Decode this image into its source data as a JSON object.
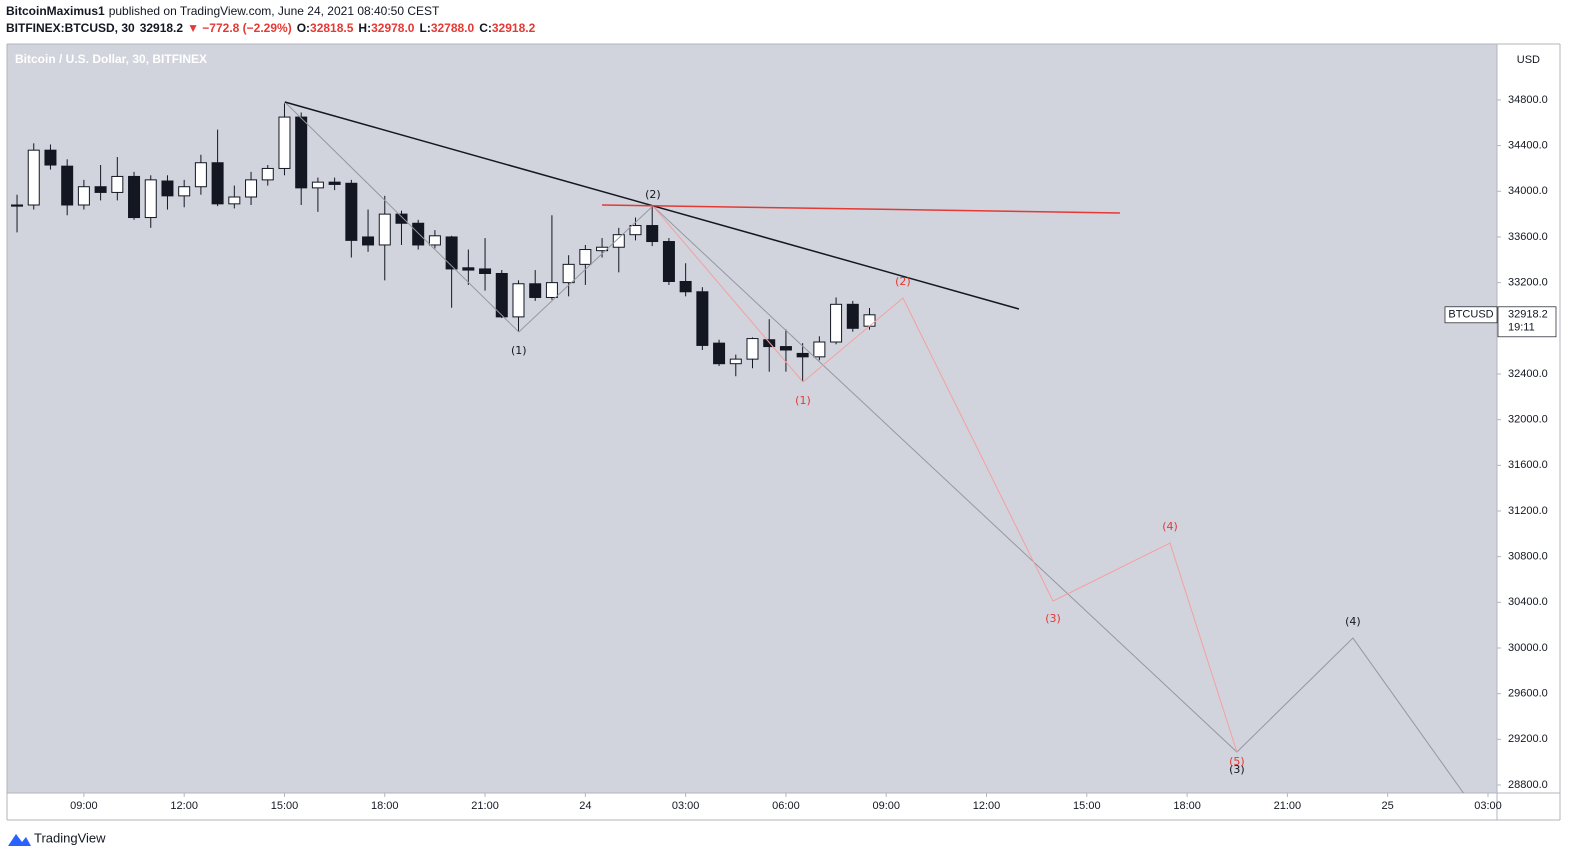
{
  "chart_data": {
    "type": "candlestick",
    "author": "BitcoinMaximus1",
    "published": "published on TradingView.com, June 24, 2021 08:40:50 CEST",
    "symbol": "BITFINEX:BTCUSD, 30",
    "last": "32918.2",
    "change": "▼ −772.8 (−2.29%)",
    "ohlc_labels": [
      {
        "key": "O:",
        "value": "32818.5"
      },
      {
        "key": "H:",
        "value": "32978.0"
      },
      {
        "key": "L:",
        "value": "32788.0"
      },
      {
        "key": "C:",
        "value": "32918.2"
      }
    ],
    "title": "Bitcoin / U.S. Dollar, 30, BITFINEX",
    "currency": "USD",
    "price_tag": {
      "symbol": "BTCUSD",
      "price": "32918.2",
      "countdown": "19:11"
    },
    "brand": "TradingView",
    "up_color": "#ffffff",
    "down_color": "#131722",
    "background": "#d1d4dc",
    "x": [
      7,
      7.5,
      8,
      8.5,
      9,
      9.5,
      10,
      10.5,
      11,
      11.5,
      12,
      12.5,
      13,
      13.5,
      14,
      14.5,
      15,
      15.5,
      16,
      16.5,
      17,
      17.5,
      18,
      18.5,
      19,
      19.5,
      20,
      20.5,
      21,
      21.5,
      22,
      22.5,
      23,
      23.5,
      24,
      24.5,
      25,
      25.5,
      26,
      26.5,
      27,
      27.5,
      28,
      28.5,
      29,
      29.5,
      30,
      30.5,
      31,
      31.5,
      32,
      32.5
    ],
    "open": [
      33880,
      33880,
      34360,
      34220,
      33880,
      34040,
      33990,
      34130,
      33770,
      34090,
      33960,
      34040,
      34250,
      33890,
      33950,
      34100,
      34200,
      34650,
      34030,
      34080,
      34070,
      33600,
      33530,
      33800,
      33720,
      33530,
      33600,
      33330,
      33320,
      33280,
      32900,
      33190,
      33070,
      33200,
      33360,
      33480,
      33510,
      33620,
      33700,
      33560,
      33210,
      33120,
      32670,
      32490,
      32530,
      32700,
      32640,
      32580,
      32550,
      32680,
      33010,
      32818.5
    ],
    "high": [
      33970,
      34420,
      34410,
      34280,
      34100,
      34230,
      34300,
      34170,
      34140,
      34140,
      34100,
      34320,
      34540,
      34050,
      34170,
      34230,
      34770,
      34690,
      34120,
      34120,
      34100,
      33840,
      33960,
      33830,
      33750,
      33660,
      33610,
      33490,
      33590,
      33310,
      33220,
      33310,
      33790,
      33440,
      33530,
      33590,
      33680,
      33770,
      33870,
      33590,
      33370,
      33160,
      32700,
      32570,
      32720,
      32880,
      32790,
      32670,
      32730,
      33070,
      33040,
      32978
    ],
    "low": [
      33640,
      33840,
      34190,
      33790,
      33840,
      33920,
      33920,
      33750,
      33680,
      33840,
      33860,
      33970,
      33870,
      33850,
      33880,
      34050,
      34140,
      33880,
      33820,
      34010,
      33420,
      33470,
      33220,
      33530,
      33490,
      33500,
      32980,
      33180,
      33130,
      32890,
      32770,
      33040,
      33050,
      33080,
      33180,
      33420,
      33290,
      33570,
      33520,
      33180,
      33080,
      32610,
      32470,
      32380,
      32450,
      32420,
      32420,
      32330,
      32520,
      32660,
      32770,
      32788
    ],
    "close": [
      33870,
      34360,
      34230,
      33880,
      34040,
      33990,
      34130,
      33770,
      34100,
      33960,
      34040,
      34250,
      33890,
      33950,
      34100,
      34200,
      34650,
      34030,
      34080,
      34060,
      33570,
      33530,
      33800,
      33720,
      33530,
      33610,
      33320,
      33310,
      33280,
      32900,
      33190,
      33070,
      33200,
      33360,
      33490,
      33510,
      33620,
      33700,
      33560,
      33210,
      33120,
      32650,
      32490,
      32530,
      32710,
      32640,
      32610,
      32550,
      32680,
      33010,
      32800,
      32918.2
    ],
    "xlim": [
      6.7,
      51.27
    ],
    "ylim": [
      28730,
      35290
    ],
    "xticks": [
      {
        "value": 9,
        "label": "09:00"
      },
      {
        "value": 12,
        "label": "12:00"
      },
      {
        "value": 15,
        "label": "15:00"
      },
      {
        "value": 18,
        "label": "18:00"
      },
      {
        "value": 21,
        "label": "21:00"
      },
      24,
      {
        "value": 27,
        "label": "03:00"
      },
      {
        "value": 30,
        "label": "06:00"
      },
      {
        "value": 33,
        "label": "09:00"
      },
      {
        "value": 36,
        "label": "12:00"
      },
      {
        "value": 39,
        "label": "15:00"
      },
      {
        "value": 42,
        "label": "18:00"
      },
      {
        "value": 45,
        "label": "21:00"
      },
      {
        "value": 48,
        "label": "25"
      },
      {
        "value": 51,
        "label": "03:00"
      }
    ],
    "yticks": [
      {
        "value": 28800,
        "label": "28800.0"
      },
      {
        "value": 29200,
        "label": "29200.0"
      },
      {
        "value": 29600,
        "label": "29600.0"
      },
      {
        "value": 30000,
        "label": "30000.0"
      },
      {
        "value": 30400,
        "label": "30400.0"
      },
      {
        "value": 30800,
        "label": "30800.0"
      },
      {
        "value": 31200,
        "label": "31200.0"
      },
      {
        "value": 31600,
        "label": "31600.0"
      },
      {
        "value": 32000,
        "label": "32000.0"
      },
      {
        "value": 32400,
        "label": "32400.0"
      },
      {
        "value": 32800,
        "label": "32800.0"
      },
      {
        "value": 33200,
        "label": "33200.0"
      },
      {
        "value": 33600,
        "label": "33600.0"
      },
      {
        "value": 34000,
        "label": "34000.0"
      },
      {
        "value": 34400,
        "label": "34400.0"
      },
      {
        "value": 34800,
        "label": "34800.0"
      }
    ],
    "lines": [
      {
        "color": "#9598a1",
        "x": [
          15.01,
          22.01,
          26.02,
          43.49,
          46.96,
          50.31
        ],
        "y": [
          34782,
          32768,
          33871,
          29089,
          30087,
          28712
        ]
      },
      {
        "color": "#f4a0a0",
        "x": [
          26.02,
          30.51,
          33.5,
          37.99,
          41.49,
          43.49
        ],
        "y": [
          33871,
          32330,
          33065,
          30411,
          30919,
          29089
        ]
      },
      {
        "color": "#131722",
        "x": [
          15.01,
          36.97
        ],
        "y": [
          34782,
          32969
        ]
      },
      {
        "color": "#e53935",
        "x": [
          24.5,
          39.99
        ],
        "y": [
          33880,
          33810
        ]
      }
    ],
    "labels": [
      {
        "text": "(1)",
        "color": "#131722",
        "x": 22.01,
        "y": 32601
      },
      {
        "text": "(2)",
        "color": "#131722",
        "x": 26.02,
        "y": 33968
      },
      {
        "text": "(3)",
        "color": "#131722",
        "x": 43.49,
        "y": 28931
      },
      {
        "text": "(4)",
        "color": "#131722",
        "x": 46.96,
        "y": 30227
      },
      {
        "text": "(1)",
        "color": "#e53935",
        "x": 30.51,
        "y": 32163
      },
      {
        "text": "(2)",
        "color": "#e53935",
        "x": 33.5,
        "y": 33206
      },
      {
        "text": "(3)",
        "color": "#e53935",
        "x": 37.99,
        "y": 30254
      },
      {
        "text": "(4)",
        "color": "#e53935",
        "x": 41.49,
        "y": 31060
      },
      {
        "text": "(5)",
        "color": "#e53935",
        "x": 43.49,
        "y": 29001
      }
    ]
  }
}
